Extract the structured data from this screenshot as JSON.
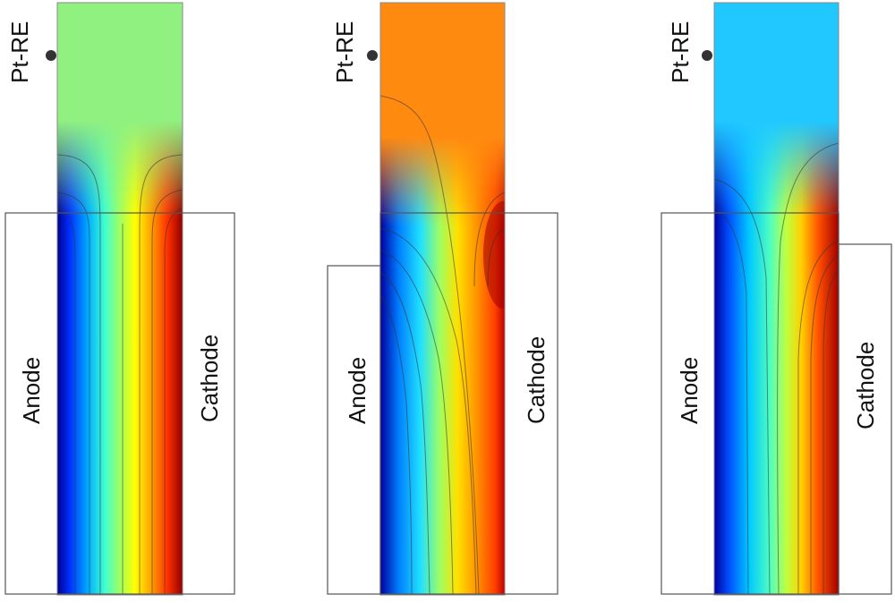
{
  "panels": [
    {
      "reference_label": "Pt-RE",
      "anode_label": "Anode",
      "cathode_label": "Cathode"
    },
    {
      "reference_label": "Pt-RE",
      "anode_label": "Anode",
      "cathode_label": "Cathode"
    },
    {
      "reference_label": "Pt-RE",
      "anode_label": "Anode",
      "cathode_label": "Cathode"
    }
  ],
  "colormap": "jet",
  "colors": {
    "outline": "#555555",
    "contour": "#333333",
    "reference_dot": "#333333"
  }
}
